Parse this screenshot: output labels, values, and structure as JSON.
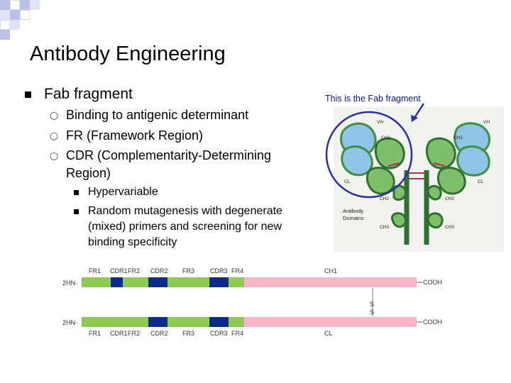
{
  "slide": {
    "title": "Antibody Engineering",
    "bullet": "Fab fragment",
    "sub_bullets": [
      "Binding to antigenic determinant",
      "FR (Framework Region)",
      "CDR (Complementarity-Determining",
      "Region)"
    ],
    "sub_sub_bullets": [
      "Hypervariable",
      "Random mutagenesis with degenerate",
      "(mixed) primers and screening for new",
      "binding specificity"
    ]
  },
  "antibody_figure": {
    "caption": "This is the Fab fragment",
    "domains_label_1": "Antibody",
    "domains_label_2": "Domains",
    "domain_labels": [
      "VH",
      "VH",
      "CH1",
      "CH1",
      "CL",
      "CL",
      "CH2",
      "CH2",
      "CH3",
      "CH3"
    ],
    "colors": {
      "circle": "#2a2fa0",
      "variable": "#8fc4e6",
      "constant": "#3f8f3f",
      "disulfide": "#b03050"
    }
  },
  "gene_diagram": {
    "heavy_segments": [
      "FR1",
      "CDR1",
      "FR2",
      "CDR2",
      "FR3",
      "CDR3",
      "FR4"
    ],
    "light_segments": [
      "FR1",
      "CDR1",
      "FR2",
      "CDR2",
      "FR3",
      "CDR3",
      "FR4"
    ],
    "heavy_constant": "CH1",
    "light_constant": "CL",
    "n_terminus": "2HN-",
    "c_terminus": "COOH",
    "disulfide_letters": [
      "S",
      "S"
    ],
    "colors": {
      "fr": "#8ecb52",
      "cdr": "#0d2c8e",
      "constant": "#f7b5c8"
    }
  }
}
